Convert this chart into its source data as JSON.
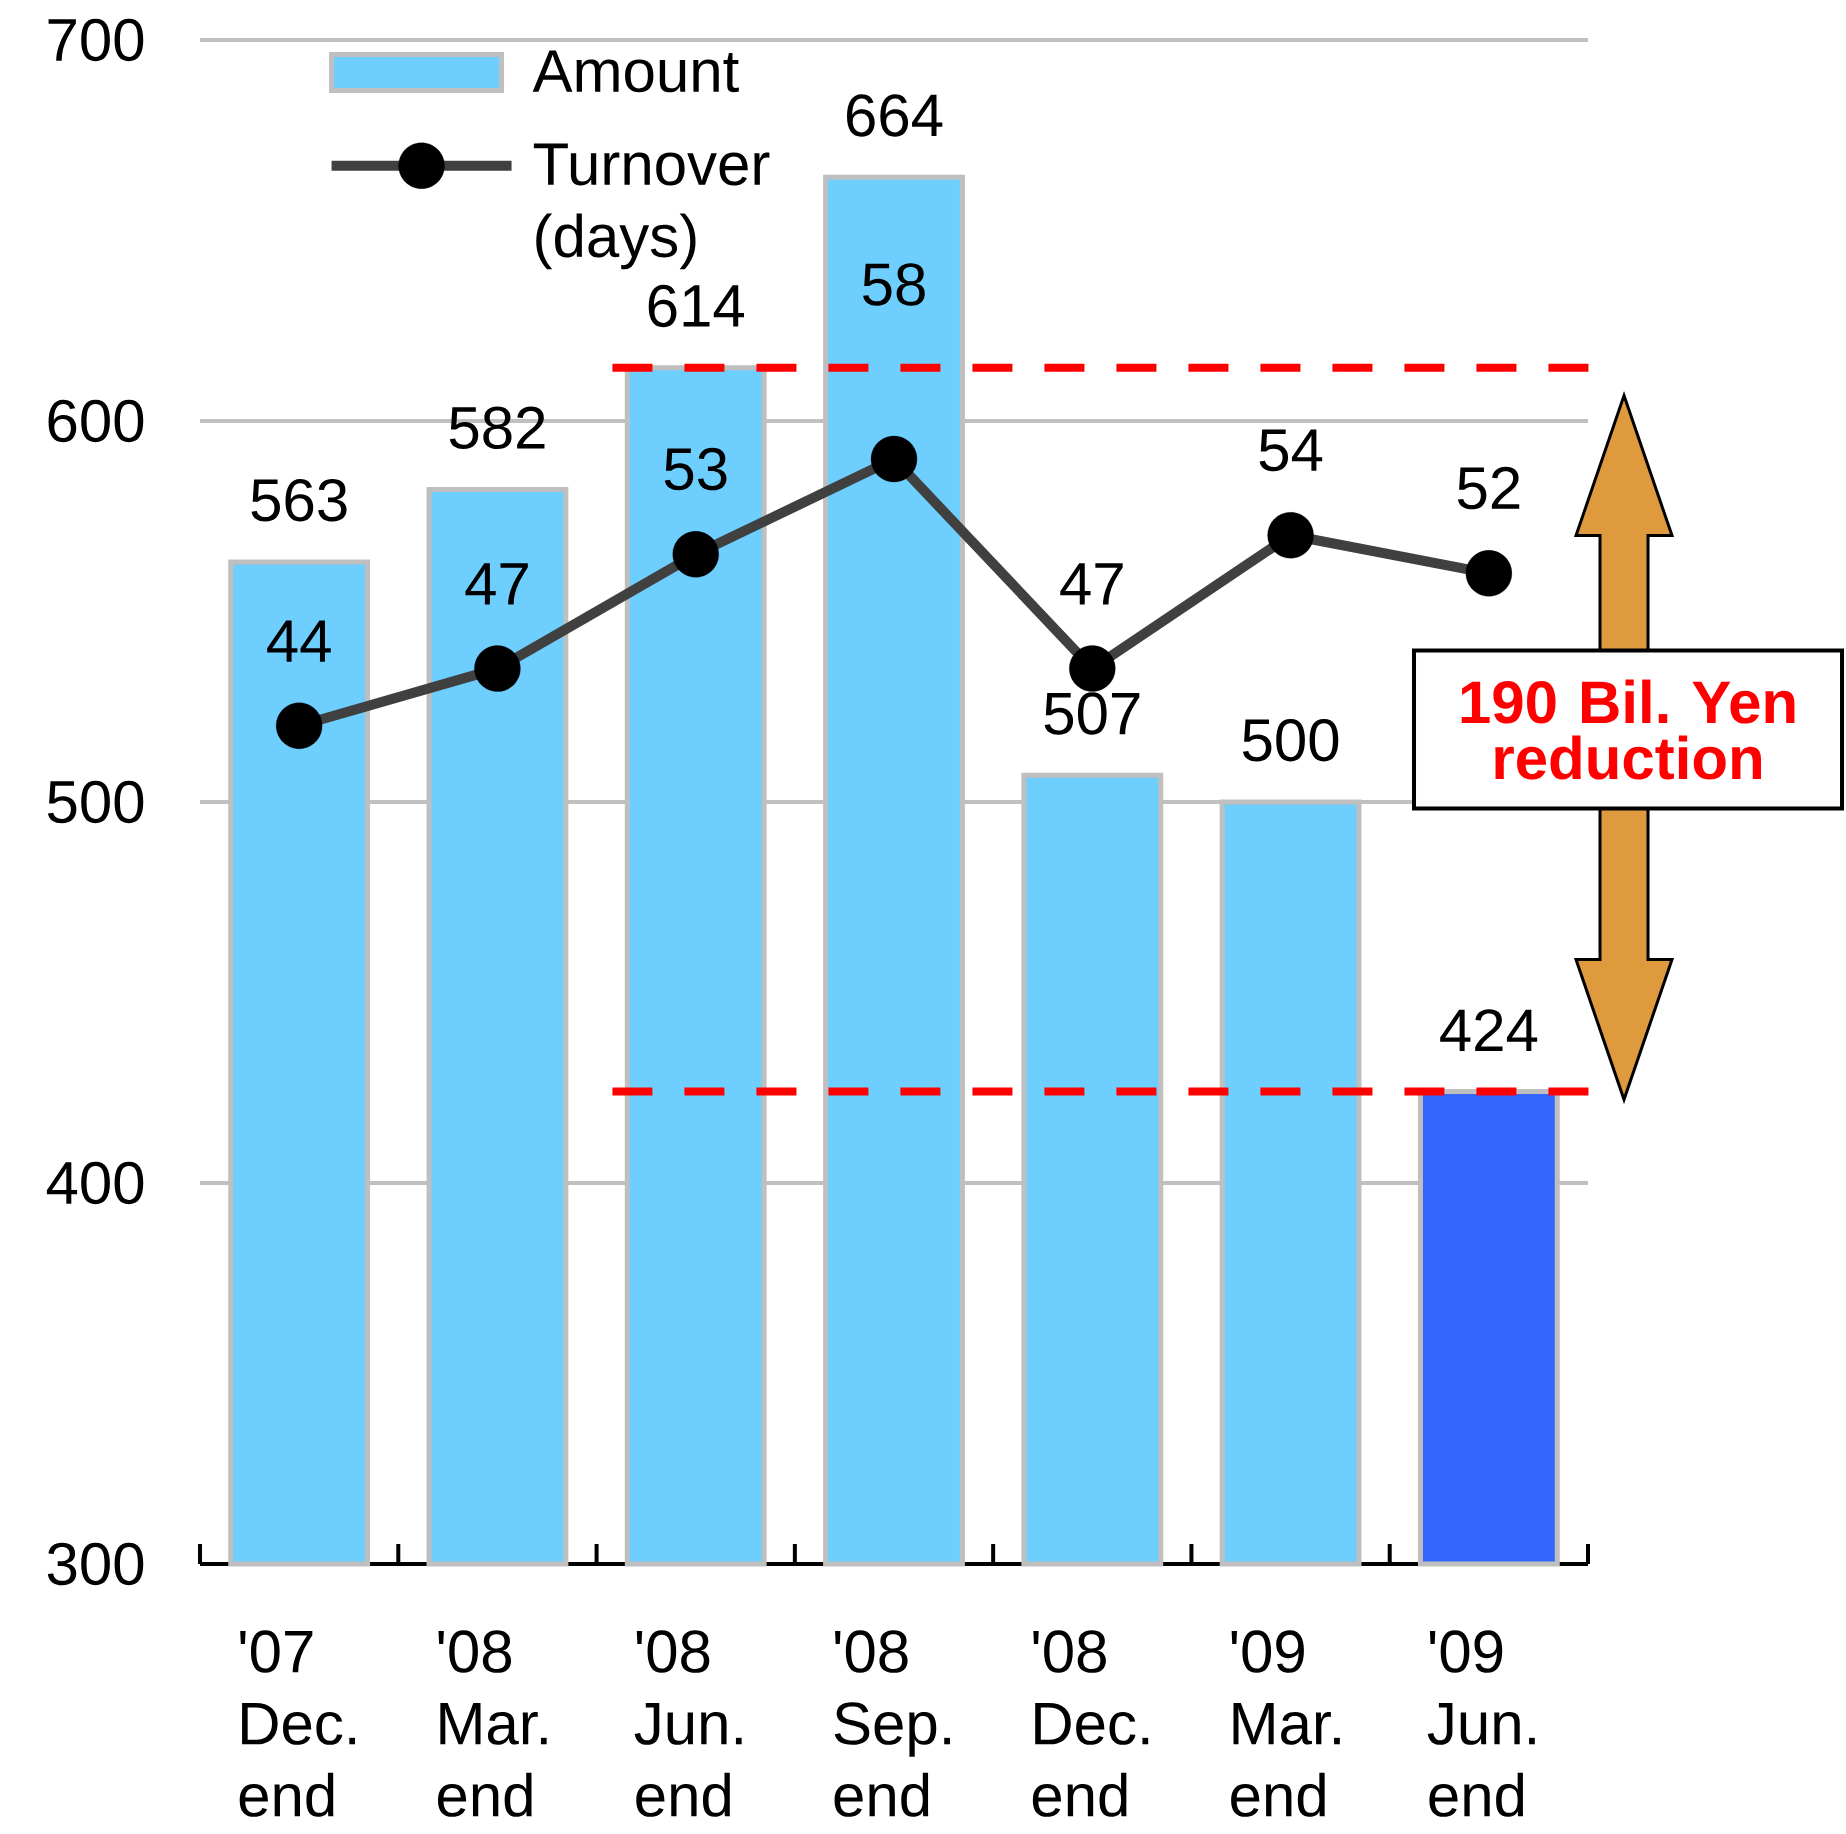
{
  "chart_data": {
    "type": "bar",
    "categories": [
      "'07 Dec. end",
      "'08 Mar. end",
      "'08 Jun. end",
      "'08 Sep. end",
      "'08 Dec. end",
      "'09 Mar. end",
      "'09 Jun. end"
    ],
    "series": [
      {
        "name": "Amount",
        "color": "#6ecefe",
        "colors": [
          "#6ecefe",
          "#6ecefe",
          "#6ecefe",
          "#6ecefe",
          "#6ecefe",
          "#6ecefe",
          "#3366ff"
        ],
        "values": [
          563,
          582,
          614,
          664,
          507,
          500,
          424
        ]
      },
      {
        "name": "Turnover (days)",
        "type": "line",
        "axis": "y2",
        "color": "#404040",
        "marker": "circle",
        "values": [
          44,
          47,
          53,
          58,
          47,
          54,
          52
        ]
      }
    ],
    "ylim": [
      300,
      700
    ],
    "yticks": [
      300,
      400,
      500,
      600,
      700
    ],
    "y2lim": [
      0,
      80
    ],
    "ref_lines": [
      {
        "axis": "y",
        "value": 614,
        "color": "#ff0000",
        "line_style": "dashed"
      },
      {
        "axis": "y",
        "value": 424,
        "color": "#ff0000",
        "line_style": "dashed"
      }
    ],
    "annotations": [
      "190 Bil. Yen reduction"
    ],
    "data_labels": true,
    "grid": "y",
    "legend": "top left"
  }
}
